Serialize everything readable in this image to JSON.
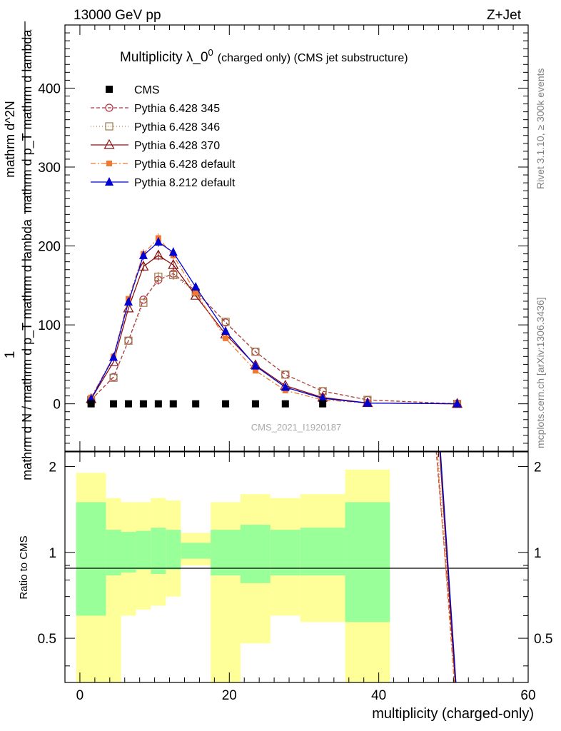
{
  "header": {
    "left": "13000 GeV pp",
    "right": "Z+Jet"
  },
  "side": {
    "rivet": "Rivet 3.1.10, ≥ 300k events",
    "mcplots": "mcplots.cern.ch [arXiv:1306.3436]"
  },
  "watermark": "CMS_2021_I1920187",
  "chart_data": [
    {
      "type": "line",
      "title_main": "Multiplicity λ_0",
      "title_sup": "0",
      "title_note": "(charged only) (CMS jet substructure)",
      "ylabel_num": "1",
      "ylabel_den": "mathrm d N / mathrm d p_T mathrm d lambda",
      "ylabel_top": "mathrm d^2N",
      "ylabel_top2": "mathrm d p_T mathrm d lambda",
      "xlim": [
        -2,
        60
      ],
      "ylim": [
        -60,
        480
      ],
      "yticks": [
        0,
        100,
        200,
        300,
        400
      ],
      "cms": {
        "name": "CMS",
        "x": [
          1.5,
          4.5,
          6.5,
          8.5,
          10.5,
          12.5,
          15.5,
          19.5,
          23.5,
          27.5,
          32.5
        ],
        "y": [
          0,
          0,
          0,
          0,
          0,
          0,
          0,
          0,
          0,
          0,
          0
        ]
      },
      "series": [
        {
          "name": "Pythia 6.428 345",
          "color": "#b03040",
          "dash": "5,3",
          "marker": "circle-open",
          "x": [
            1.5,
            4.5,
            6.5,
            8.5,
            10.5,
            12.5,
            15.5,
            19.5,
            23.5,
            27.5,
            32.5,
            38.5,
            50.5
          ],
          "y": [
            5,
            34,
            80,
            132,
            157,
            165,
            143,
            103,
            66,
            37,
            16,
            5,
            0
          ]
        },
        {
          "name": "Pythia 6.428 346",
          "color": "#a07848",
          "dash": "1,3",
          "marker": "square-open",
          "x": [
            1.5,
            4.5,
            6.5,
            8.5,
            10.5,
            12.5,
            15.5,
            19.5,
            23.5,
            27.5,
            32.5,
            38.5,
            50.5
          ],
          "y": [
            5,
            33,
            80,
            128,
            161,
            163,
            141,
            104,
            66,
            37,
            16,
            5,
            0
          ]
        },
        {
          "name": "Pythia 6.428 370",
          "color": "#8b1010",
          "dash": "",
          "marker": "triangle-open",
          "x": [
            1.5,
            4.5,
            6.5,
            8.5,
            10.5,
            12.5,
            15.5,
            19.5,
            23.5,
            27.5,
            32.5,
            38.5,
            50.5
          ],
          "y": [
            6,
            53,
            121,
            174,
            188,
            176,
            137,
            88,
            49,
            23,
            8,
            1,
            0
          ]
        },
        {
          "name": "Pythia 6.428 default",
          "color": "#f07830",
          "dash": "7,3,2,3",
          "marker": "square-filled",
          "x": [
            1.5,
            4.5,
            6.5,
            8.5,
            10.5,
            12.5,
            15.5,
            19.5,
            23.5,
            27.5,
            32.5,
            38.5,
            50.5
          ],
          "y": [
            8,
            60,
            133,
            190,
            210,
            188,
            141,
            83,
            42,
            17,
            5,
            1,
            0
          ]
        },
        {
          "name": "Pythia 8.212 default",
          "color": "#0000d0",
          "dash": "",
          "marker": "triangle-filled",
          "x": [
            1.5,
            4.5,
            6.5,
            8.5,
            10.5,
            12.5,
            15.5,
            19.5,
            23.5,
            27.5,
            32.5,
            38.5,
            50.5
          ],
          "y": [
            6,
            59,
            129,
            188,
            205,
            192,
            148,
            92,
            48,
            21,
            7,
            1,
            0
          ]
        }
      ]
    },
    {
      "type": "area",
      "ylabel": "Ratio to CMS",
      "xlabel": "multiplicity (charged-only)",
      "xlim": [
        -2,
        60
      ],
      "ylim": [
        0.35,
        2.25
      ],
      "yticks": [
        0.5,
        1,
        2
      ],
      "xticks": [
        0,
        20,
        40,
        60
      ],
      "bins": [
        {
          "lo": -0.5,
          "hi": 3.5,
          "inner_lo": 0.6,
          "inner_hi": 1.5,
          "outer_lo": 0.35,
          "outer_hi": 1.9
        },
        {
          "lo": 3.5,
          "hi": 5.5,
          "inner_lo": 0.83,
          "inner_hi": 1.2,
          "outer_lo": 0.35,
          "outer_hi": 1.55
        },
        {
          "lo": 5.5,
          "hi": 7.5,
          "inner_lo": 0.85,
          "inner_hi": 1.18,
          "outer_lo": 0.6,
          "outer_hi": 1.5
        },
        {
          "lo": 7.5,
          "hi": 9.5,
          "inner_lo": 0.87,
          "inner_hi": 1.19,
          "outer_lo": 0.63,
          "outer_hi": 1.5
        },
        {
          "lo": 9.5,
          "hi": 11.5,
          "inner_lo": 0.84,
          "inner_hi": 1.22,
          "outer_lo": 0.65,
          "outer_hi": 1.55
        },
        {
          "lo": 11.5,
          "hi": 13.5,
          "inner_lo": 0.87,
          "inner_hi": 1.2,
          "outer_lo": 0.7,
          "outer_hi": 1.52
        },
        {
          "lo": 13.5,
          "hi": 17.5,
          "inner_lo": 0.95,
          "inner_hi": 1.08,
          "outer_lo": 0.9,
          "outer_hi": 1.17
        },
        {
          "lo": 17.5,
          "hi": 21.5,
          "inner_lo": 0.83,
          "inner_hi": 1.2,
          "outer_lo": 0.35,
          "outer_hi": 1.5
        },
        {
          "lo": 21.5,
          "hi": 25.5,
          "inner_lo": 0.78,
          "inner_hi": 1.25,
          "outer_lo": 0.48,
          "outer_hi": 1.6
        },
        {
          "lo": 25.5,
          "hi": 29.5,
          "inner_lo": 0.83,
          "inner_hi": 1.2,
          "outer_lo": 0.6,
          "outer_hi": 1.55
        },
        {
          "lo": 29.5,
          "hi": 35.5,
          "inner_lo": 0.83,
          "inner_hi": 1.22,
          "outer_lo": 0.57,
          "outer_hi": 1.6
        },
        {
          "lo": 35.5,
          "hi": 41.5,
          "inner_lo": 0.57,
          "inner_hi": 1.5,
          "outer_lo": 0.35,
          "outer_hi": 1.95
        }
      ],
      "ratio_lines": [
        {
          "series": "Pythia 6.428 345",
          "x": [
            47.5,
            50.5
          ],
          "y": [
            2.6,
            0.3
          ]
        },
        {
          "series": "Pythia 6.428 346",
          "x": [
            47.7,
            50.5
          ],
          "y": [
            2.6,
            0.3
          ]
        },
        {
          "series": "Pythia 6.428 370",
          "x": [
            48.0,
            50.4
          ],
          "y": [
            2.6,
            0.3
          ]
        },
        {
          "series": "Pythia 6.428 default",
          "x": [
            47.6,
            50.3
          ],
          "y": [
            2.6,
            0.3
          ]
        },
        {
          "series": "Pythia 8.212 default",
          "x": [
            48.1,
            50.5
          ],
          "y": [
            2.6,
            0.3
          ]
        }
      ]
    }
  ]
}
